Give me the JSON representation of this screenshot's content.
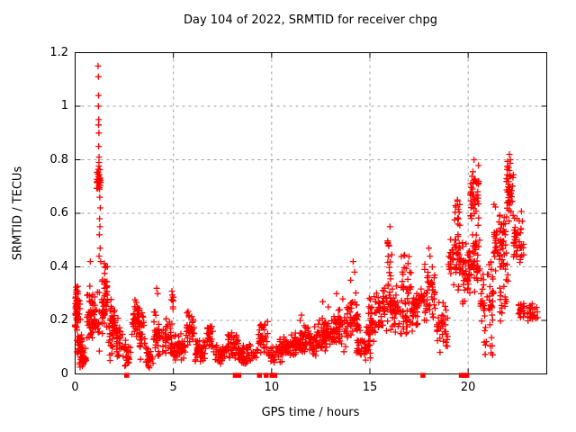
{
  "chart_data": {
    "type": "scatter",
    "title": "Day 104 of 2022, SRMTID for receiver chpg",
    "xlabel": "GPS time / hours",
    "ylabel": "SRMTID / TECUs",
    "xlim": [
      0,
      24
    ],
    "ylim": [
      0,
      1.2
    ],
    "xticks": {
      "values": [
        0,
        5,
        10,
        15,
        20
      ],
      "labels": [
        "0",
        "5",
        "10",
        "15",
        "20"
      ]
    },
    "yticks": {
      "values": [
        0,
        0.2,
        0.4,
        0.6,
        0.8,
        1,
        1.2
      ],
      "labels": [
        "0",
        "0.2",
        "0.4",
        "0.6",
        "0.8",
        "1",
        "1.2"
      ]
    },
    "grid": true,
    "legend": "none",
    "background": "#ffffff",
    "frame_color": "#000000",
    "grid_color": "#9e9e9e",
    "marker": {
      "shape": "plus",
      "color": "#ff0000",
      "size": 7
    },
    "seed": 1337,
    "series": [
      {
        "name": "SRMTID",
        "marker": "plus",
        "color": "#ff0000",
        "cluster_format": [
          "x_start_h",
          "x_end_h",
          "y_min_TECU",
          "y_max_TECU",
          "count"
        ],
        "clusters": [
          [
            0.0,
            0.15,
            0.13,
            0.37,
            40
          ],
          [
            0.02,
            0.3,
            0.18,
            0.33,
            16
          ],
          [
            0.08,
            0.35,
            0.05,
            0.17,
            30
          ],
          [
            0.22,
            0.58,
            0.02,
            0.11,
            34
          ],
          [
            0.6,
            0.92,
            0.1,
            0.35,
            46
          ],
          [
            0.95,
            1.25,
            0.04,
            0.34,
            24
          ],
          [
            1.1,
            1.3,
            0.68,
            0.78,
            30
          ],
          [
            1.33,
            1.65,
            0.1,
            0.44,
            52
          ],
          [
            1.7,
            2.05,
            0.04,
            0.3,
            46
          ],
          [
            2.1,
            2.45,
            0.05,
            0.22,
            30
          ],
          [
            2.5,
            2.82,
            0.02,
            0.13,
            26
          ],
          [
            2.88,
            3.3,
            0.12,
            0.28,
            46
          ],
          [
            3.28,
            3.55,
            0.05,
            0.25,
            24
          ],
          [
            3.58,
            3.97,
            0.02,
            0.11,
            26
          ],
          [
            4.0,
            4.5,
            0.04,
            0.27,
            40
          ],
          [
            4.55,
            5.0,
            0.05,
            0.22,
            34
          ],
          [
            4.88,
            5.02,
            0.2,
            0.33,
            10
          ],
          [
            5.02,
            5.6,
            0.04,
            0.16,
            46
          ],
          [
            5.65,
            6.1,
            0.1,
            0.25,
            36
          ],
          [
            6.1,
            6.7,
            0.03,
            0.14,
            46
          ],
          [
            6.7,
            7.05,
            0.09,
            0.19,
            26
          ],
          [
            7.05,
            7.7,
            0.03,
            0.12,
            44
          ],
          [
            7.75,
            8.3,
            0.05,
            0.17,
            40
          ],
          [
            8.3,
            9.25,
            0.03,
            0.12,
            56
          ],
          [
            9.3,
            9.8,
            0.07,
            0.21,
            36
          ],
          [
            9.85,
            10.35,
            0.03,
            0.12,
            22
          ],
          [
            10.35,
            11.0,
            0.04,
            0.14,
            50
          ],
          [
            11.0,
            11.6,
            0.06,
            0.18,
            46
          ],
          [
            11.6,
            12.3,
            0.06,
            0.19,
            56
          ],
          [
            12.3,
            13.0,
            0.08,
            0.22,
            56
          ],
          [
            13.0,
            13.8,
            0.08,
            0.25,
            60
          ],
          [
            13.8,
            14.4,
            0.1,
            0.31,
            50
          ],
          [
            14.3,
            15.1,
            0.03,
            0.2,
            50
          ],
          [
            14.9,
            15.6,
            0.12,
            0.31,
            50
          ],
          [
            15.6,
            16.2,
            0.15,
            0.38,
            44
          ],
          [
            15.9,
            16.15,
            0.3,
            0.52,
            14
          ],
          [
            16.2,
            17.0,
            0.12,
            0.35,
            56
          ],
          [
            16.55,
            17.1,
            0.3,
            0.48,
            18
          ],
          [
            17.0,
            17.6,
            0.15,
            0.35,
            44
          ],
          [
            17.6,
            18.35,
            0.15,
            0.43,
            56
          ],
          [
            18.4,
            18.95,
            0.07,
            0.3,
            36
          ],
          [
            19.0,
            19.65,
            0.3,
            0.55,
            50
          ],
          [
            19.3,
            19.6,
            0.55,
            0.66,
            12
          ],
          [
            19.7,
            20.1,
            0.25,
            0.5,
            40
          ],
          [
            20.1,
            20.55,
            0.55,
            0.79,
            46
          ],
          [
            20.1,
            20.6,
            0.3,
            0.55,
            36
          ],
          [
            20.6,
            21.3,
            0.15,
            0.45,
            50
          ],
          [
            20.8,
            21.25,
            0.02,
            0.15,
            10
          ],
          [
            21.3,
            21.95,
            0.35,
            0.65,
            56
          ],
          [
            21.6,
            22.05,
            0.15,
            0.45,
            20
          ],
          [
            21.95,
            22.3,
            0.55,
            0.82,
            46
          ],
          [
            22.3,
            22.85,
            0.38,
            0.62,
            46
          ],
          [
            22.55,
            22.9,
            0.2,
            0.28,
            20
          ],
          [
            23.0,
            23.55,
            0.19,
            0.27,
            26
          ]
        ],
        "points": [
          [
            0.77,
            0.42
          ],
          [
            1.17,
            1.15
          ],
          [
            1.18,
            1.11
          ],
          [
            1.19,
            1.04
          ],
          [
            1.18,
            1.0
          ],
          [
            1.2,
            0.95
          ],
          [
            1.19,
            0.93
          ],
          [
            1.21,
            0.9
          ],
          [
            1.2,
            0.85
          ],
          [
            1.22,
            0.81
          ],
          [
            1.21,
            0.79
          ],
          [
            1.25,
            0.66
          ],
          [
            1.28,
            0.62
          ],
          [
            1.24,
            0.58
          ],
          [
            1.26,
            0.55
          ],
          [
            1.23,
            0.52
          ],
          [
            1.27,
            0.47
          ],
          [
            1.22,
            0.44
          ],
          [
            1.3,
            0.42
          ],
          [
            4.15,
            0.32
          ],
          [
            4.2,
            0.3
          ],
          [
            11.45,
            0.2
          ],
          [
            11.52,
            0.22
          ],
          [
            12.6,
            0.27
          ],
          [
            12.88,
            0.25
          ],
          [
            13.3,
            0.3
          ],
          [
            13.62,
            0.28
          ],
          [
            14.02,
            0.35
          ],
          [
            14.15,
            0.42
          ],
          [
            14.22,
            0.38
          ],
          [
            16.02,
            0.55
          ],
          [
            18.0,
            0.47
          ],
          [
            18.06,
            0.44
          ],
          [
            19.45,
            0.65
          ],
          [
            20.3,
            0.8
          ],
          [
            22.1,
            0.82
          ],
          [
            22.15,
            0.8
          ]
        ]
      },
      {
        "name": "baseline-flags",
        "marker": "square",
        "color": "#ff0000",
        "y": 0,
        "x": [
          2.62,
          8.15,
          8.33,
          9.38,
          9.72,
          10.02,
          10.16,
          17.7,
          19.65,
          19.8,
          19.93
        ]
      }
    ]
  }
}
